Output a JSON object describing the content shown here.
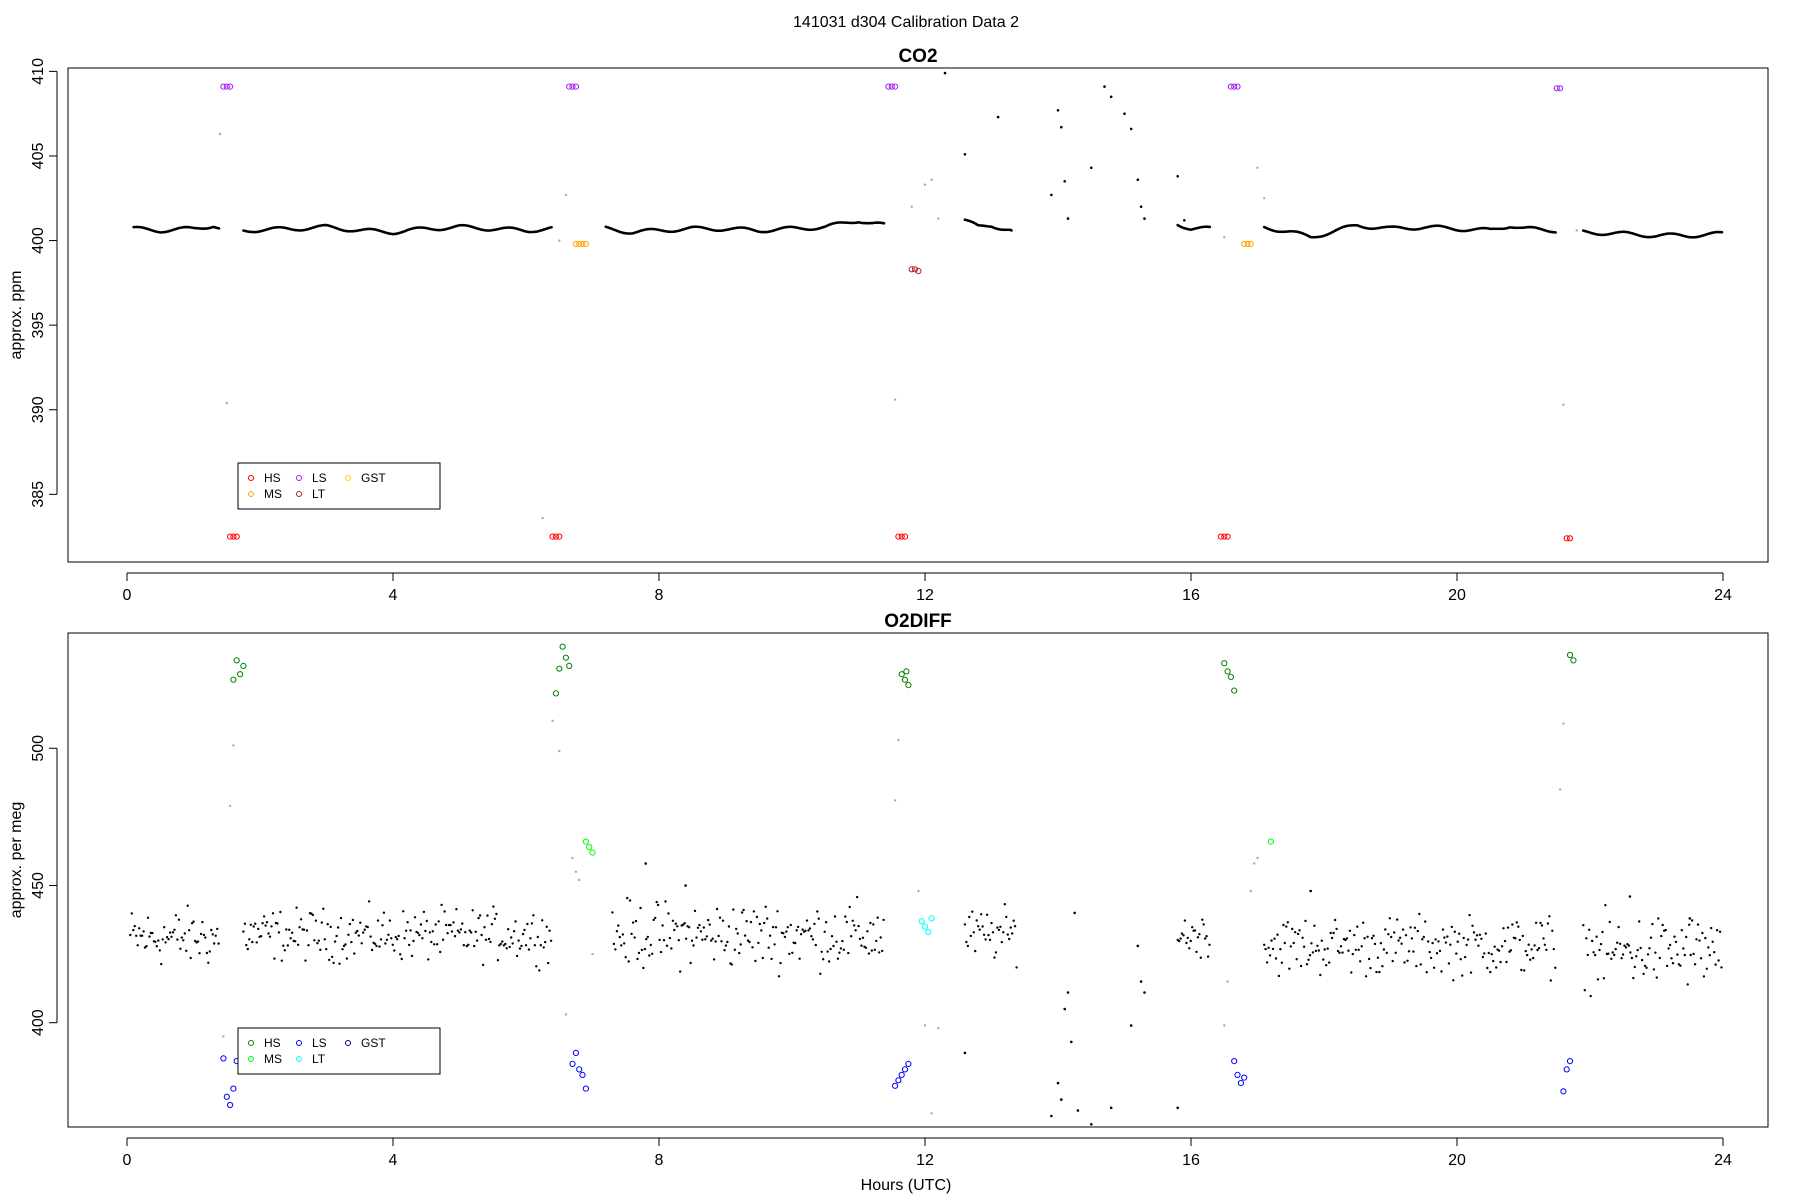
{
  "figure": {
    "title": "141031   d304   Calibration Data 2",
    "xlabel": "Hours (UTC)"
  },
  "chart_data": [
    {
      "type": "scatter",
      "title": "CO2",
      "xlabel": "",
      "ylabel": "approx. ppm",
      "xlim": [
        0,
        24
      ],
      "ylim": [
        381,
        410.2
      ],
      "xticks": [
        0,
        4,
        8,
        12,
        16,
        20,
        24
      ],
      "yticks": [
        385,
        390,
        395,
        400,
        405,
        410
      ],
      "grid": false,
      "legend": {
        "position": "bottom-left",
        "entries": [
          {
            "label": "HS",
            "color": "#ff0000"
          },
          {
            "label": "MS",
            "color": "#ffa500"
          },
          {
            "label": "LS",
            "color": "#a020f0"
          },
          {
            "label": "LT",
            "color": "#b22222"
          },
          {
            "label": "GST",
            "color": "#ffd700"
          }
        ]
      },
      "ambient": {
        "color": "#000000",
        "segments": [
          [
            [
              0.1,
              400.7
            ],
            [
              0.5,
              400.6
            ],
            [
              1.0,
              400.7
            ],
            [
              1.3,
              400.9
            ],
            [
              1.4,
              400.7
            ]
          ],
          [
            [
              1.75,
              400.6
            ],
            [
              2.5,
              400.7
            ],
            [
              3.0,
              400.8
            ],
            [
              3.5,
              400.6
            ],
            [
              4.0,
              400.5
            ],
            [
              4.5,
              400.7
            ],
            [
              5.0,
              400.8
            ],
            [
              5.5,
              400.7
            ],
            [
              6.0,
              400.6
            ],
            [
              6.4,
              400.7
            ]
          ],
          [
            [
              7.2,
              400.7
            ],
            [
              7.6,
              400.5
            ],
            [
              8.0,
              400.6
            ],
            [
              8.5,
              400.7
            ],
            [
              9.0,
              400.7
            ],
            [
              9.5,
              400.6
            ],
            [
              10.0,
              400.7
            ],
            [
              10.5,
              400.8
            ],
            [
              11.0,
              401.2
            ],
            [
              11.2,
              401.0
            ],
            [
              11.4,
              400.9
            ]
          ],
          [
            [
              12.6,
              401.2
            ],
            [
              12.8,
              400.8
            ],
            [
              13.0,
              400.9
            ],
            [
              13.3,
              400.6
            ]
          ],
          [
            [
              15.8,
              401.0
            ],
            [
              16.0,
              400.7
            ],
            [
              16.3,
              400.7
            ]
          ],
          [
            [
              17.1,
              400.8
            ],
            [
              17.5,
              400.5
            ],
            [
              17.8,
              400.2
            ],
            [
              18.2,
              400.6
            ],
            [
              18.5,
              400.9
            ],
            [
              19.0,
              400.7
            ],
            [
              19.5,
              400.8
            ],
            [
              20.0,
              400.7
            ],
            [
              20.5,
              400.6
            ],
            [
              20.8,
              400.9
            ],
            [
              21.0,
              400.7
            ],
            [
              21.5,
              400.6
            ]
          ],
          [
            [
              21.9,
              400.5
            ],
            [
              22.5,
              400.4
            ],
            [
              23.0,
              400.3
            ],
            [
              23.5,
              400.3
            ],
            [
              24.0,
              400.4
            ]
          ]
        ],
        "points": [
          [
            12.3,
            409.9
          ],
          [
            12.6,
            405.1
          ],
          [
            13.1,
            407.3
          ],
          [
            13.3,
            400.6
          ],
          [
            13.9,
            402.7
          ],
          [
            14.0,
            407.7
          ],
          [
            14.05,
            406.7
          ],
          [
            14.1,
            403.5
          ],
          [
            14.15,
            401.3
          ],
          [
            14.5,
            404.3
          ],
          [
            14.7,
            409.1
          ],
          [
            14.8,
            408.5
          ],
          [
            15.0,
            407.5
          ],
          [
            15.1,
            406.6
          ],
          [
            15.2,
            403.6
          ],
          [
            15.3,
            401.3
          ],
          [
            15.25,
            402.0
          ],
          [
            15.8,
            403.8
          ],
          [
            15.9,
            401.2
          ]
        ]
      },
      "transition": {
        "color": "#a9a9a9",
        "points": [
          [
            1.4,
            406.3
          ],
          [
            1.5,
            390.4
          ],
          [
            6.25,
            383.6
          ],
          [
            6.5,
            400.0
          ],
          [
            6.6,
            402.7
          ],
          [
            11.55,
            390.6
          ],
          [
            11.8,
            402.0
          ],
          [
            12.0,
            403.3
          ],
          [
            12.1,
            403.6
          ],
          [
            12.2,
            401.3
          ],
          [
            16.5,
            400.2
          ],
          [
            17.0,
            404.3
          ],
          [
            17.1,
            402.5
          ],
          [
            21.6,
            390.3
          ],
          [
            21.8,
            400.6
          ]
        ]
      },
      "series": [
        {
          "name": "HS",
          "color": "#ff0000",
          "points": [
            [
              1.55,
              382.5
            ],
            [
              1.6,
              382.5
            ],
            [
              1.65,
              382.5
            ],
            [
              6.4,
              382.5
            ],
            [
              6.45,
              382.5
            ],
            [
              6.5,
              382.5
            ],
            [
              11.6,
              382.5
            ],
            [
              11.65,
              382.5
            ],
            [
              11.7,
              382.5
            ],
            [
              16.45,
              382.5
            ],
            [
              16.5,
              382.5
            ],
            [
              16.55,
              382.5
            ],
            [
              21.65,
              382.4
            ],
            [
              21.7,
              382.4
            ]
          ]
        },
        {
          "name": "MS",
          "color": "#ffa500",
          "points": [
            [
              6.75,
              399.8
            ],
            [
              6.8,
              399.8
            ],
            [
              6.85,
              399.8
            ],
            [
              6.9,
              399.8
            ],
            [
              16.8,
              399.8
            ],
            [
              16.85,
              399.8
            ],
            [
              16.9,
              399.8
            ]
          ]
        },
        {
          "name": "LS",
          "color": "#a020f0",
          "points": [
            [
              1.45,
              409.1
            ],
            [
              1.5,
              409.1
            ],
            [
              1.55,
              409.1
            ],
            [
              6.65,
              409.1
            ],
            [
              6.7,
              409.1
            ],
            [
              6.75,
              409.1
            ],
            [
              11.45,
              409.1
            ],
            [
              11.5,
              409.1
            ],
            [
              11.55,
              409.1
            ],
            [
              16.6,
              409.1
            ],
            [
              16.65,
              409.1
            ],
            [
              16.7,
              409.1
            ],
            [
              21.5,
              409.0
            ],
            [
              21.55,
              409.0
            ]
          ]
        },
        {
          "name": "LT",
          "color": "#b22222",
          "points": [
            [
              11.8,
              398.3
            ],
            [
              11.85,
              398.3
            ],
            [
              11.9,
              398.2
            ]
          ]
        },
        {
          "name": "GST",
          "color": "#ffd700",
          "points": []
        }
      ]
    },
    {
      "type": "scatter",
      "title": "O2DIFF",
      "xlabel": "Hours (UTC)",
      "ylabel": "approx. per meg",
      "xlim": [
        0,
        24
      ],
      "ylim": [
        362,
        542
      ],
      "xticks": [
        0,
        4,
        8,
        12,
        16,
        20,
        24
      ],
      "yticks": [
        400,
        450,
        500
      ],
      "grid": false,
      "legend": {
        "position": "bottom-left",
        "entries": [
          {
            "label": "HS",
            "color": "#008000"
          },
          {
            "label": "MS",
            "color": "#00ff00"
          },
          {
            "label": "LS",
            "color": "#0000ff"
          },
          {
            "label": "LT",
            "color": "#00ffff"
          },
          {
            "label": "GST",
            "color": "#00008b"
          }
        ]
      },
      "ambient": {
        "color": "#000000",
        "bands": [
          {
            "x": [
              0.05,
              1.4
            ],
            "center": 431,
            "spread": 8
          },
          {
            "x": [
              1.75,
              6.4
            ],
            "center": 432,
            "spread": 7
          },
          {
            "x": [
              7.3,
              11.4
            ],
            "center": 432,
            "spread": 9
          },
          {
            "x": [
              12.6,
              13.4
            ],
            "center": 432,
            "spread": 7
          },
          {
            "x": [
              15.8,
              16.3
            ],
            "center": 432,
            "spread": 6
          },
          {
            "x": [
              17.1,
              21.5
            ],
            "center": 428,
            "spread": 8
          },
          {
            "x": [
              21.9,
              24.0
            ],
            "center": 426,
            "spread": 10
          }
        ],
        "points": [
          [
            7.8,
            458
          ],
          [
            8.4,
            450
          ],
          [
            12.6,
            389
          ],
          [
            13.9,
            366
          ],
          [
            14.0,
            378
          ],
          [
            14.05,
            372
          ],
          [
            14.1,
            405
          ],
          [
            14.15,
            411
          ],
          [
            14.2,
            393
          ],
          [
            14.25,
            440
          ],
          [
            14.3,
            368
          ],
          [
            14.5,
            363
          ],
          [
            14.8,
            369
          ],
          [
            15.1,
            399
          ],
          [
            15.2,
            428
          ],
          [
            15.25,
            415
          ],
          [
            15.3,
            411
          ],
          [
            15.8,
            369
          ],
          [
            17.8,
            448
          ],
          [
            22.6,
            446
          ],
          [
            23.5,
            438
          ]
        ]
      },
      "transition": {
        "color": "#a9a9a9",
        "points": [
          [
            1.45,
            395
          ],
          [
            1.55,
            479
          ],
          [
            1.6,
            501
          ],
          [
            6.4,
            510
          ],
          [
            6.5,
            499
          ],
          [
            6.6,
            403
          ],
          [
            6.7,
            460
          ],
          [
            6.75,
            455
          ],
          [
            6.8,
            452
          ],
          [
            7.0,
            425
          ],
          [
            11.55,
            481
          ],
          [
            11.6,
            503
          ],
          [
            11.9,
            448
          ],
          [
            12.0,
            399
          ],
          [
            12.1,
            367
          ],
          [
            12.2,
            398
          ],
          [
            16.5,
            399
          ],
          [
            16.55,
            415
          ],
          [
            16.9,
            448
          ],
          [
            16.95,
            458
          ],
          [
            17.0,
            460
          ],
          [
            21.55,
            485
          ],
          [
            21.6,
            509
          ]
        ]
      },
      "series": [
        {
          "name": "HS",
          "color": "#008000",
          "points": [
            [
              1.6,
              525
            ],
            [
              1.65,
              532
            ],
            [
              1.7,
              527
            ],
            [
              1.75,
              530
            ],
            [
              6.45,
              520
            ],
            [
              6.5,
              529
            ],
            [
              6.55,
              537
            ],
            [
              6.6,
              533
            ],
            [
              6.65,
              530
            ],
            [
              11.65,
              527
            ],
            [
              11.7,
              525
            ],
            [
              11.75,
              523
            ],
            [
              11.72,
              528
            ],
            [
              16.5,
              531
            ],
            [
              16.55,
              528
            ],
            [
              16.6,
              526
            ],
            [
              16.65,
              521
            ],
            [
              21.7,
              534
            ],
            [
              21.75,
              532
            ]
          ]
        },
        {
          "name": "MS",
          "color": "#00ff00",
          "points": [
            [
              6.9,
              466
            ],
            [
              6.95,
              464
            ],
            [
              7.0,
              462
            ],
            [
              17.2,
              466
            ]
          ]
        },
        {
          "name": "LS",
          "color": "#0000ff",
          "points": [
            [
              1.45,
              387
            ],
            [
              1.5,
              373
            ],
            [
              1.55,
              370
            ],
            [
              1.6,
              376
            ],
            [
              1.65,
              386
            ],
            [
              6.7,
              385
            ],
            [
              6.75,
              389
            ],
            [
              6.8,
              383
            ],
            [
              6.85,
              381
            ],
            [
              6.9,
              376
            ],
            [
              11.55,
              377
            ],
            [
              11.6,
              379
            ],
            [
              11.65,
              381
            ],
            [
              11.7,
              383
            ],
            [
              11.75,
              385
            ],
            [
              16.65,
              386
            ],
            [
              16.7,
              381
            ],
            [
              16.75,
              378
            ],
            [
              16.8,
              380
            ],
            [
              21.6,
              375
            ],
            [
              21.65,
              383
            ],
            [
              21.7,
              386
            ]
          ]
        },
        {
          "name": "LT",
          "color": "#00ffff",
          "points": [
            [
              11.95,
              437
            ],
            [
              12.0,
              435
            ],
            [
              12.05,
              433
            ],
            [
              12.1,
              438
            ]
          ]
        },
        {
          "name": "GST",
          "color": "#00008b",
          "points": []
        }
      ]
    }
  ]
}
